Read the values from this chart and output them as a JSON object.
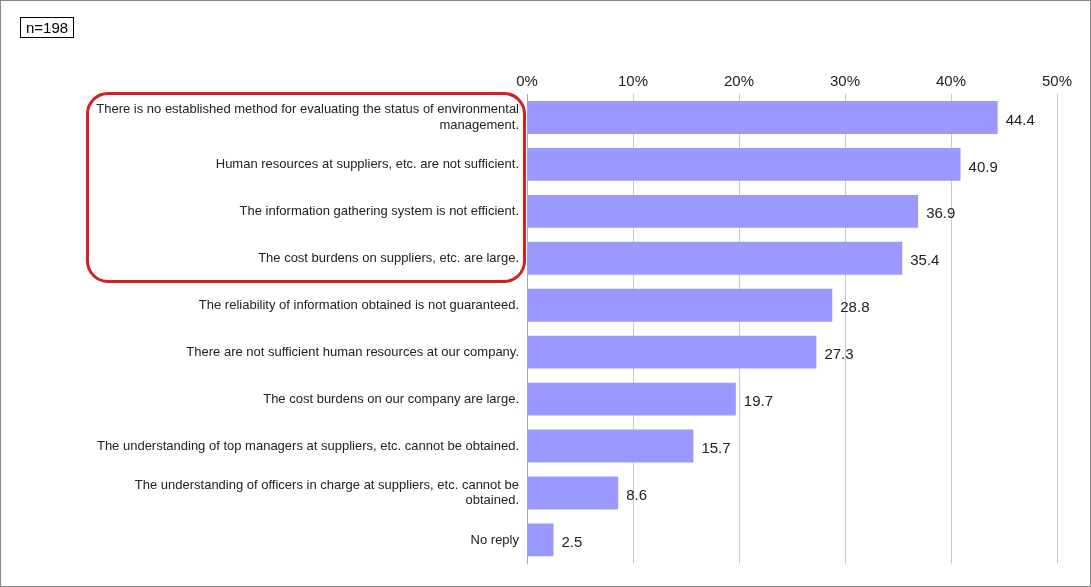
{
  "chart_data": {
    "type": "bar",
    "orientation": "horizontal",
    "categories": [
      "There is no established method for evaluating the status of environmental management.",
      "Human resources at suppliers, etc. are not sufficient.",
      "The information gathering system is not efficient.",
      "The cost burdens on suppliers, etc. are large.",
      "The reliability of information obtained is not guaranteed.",
      "There are not sufficient human resources at our company.",
      "The cost burdens on our company are large.",
      "The understanding of top managers at suppliers, etc. cannot be obtained.",
      "The understanding of officers in charge at suppliers, etc. cannot be obtained.",
      "No reply"
    ],
    "values": [
      44.4,
      40.9,
      36.9,
      35.4,
      28.8,
      27.3,
      19.7,
      15.7,
      8.6,
      2.5
    ],
    "color": "#9999ff",
    "xlim": [
      0,
      50
    ],
    "xticks": [
      {
        "value": 0,
        "label": "0%"
      },
      {
        "value": 10,
        "label": "10%"
      },
      {
        "value": 20,
        "label": "20%"
      },
      {
        "value": 30,
        "label": "30%"
      },
      {
        "value": 40,
        "label": "40%"
      },
      {
        "value": 50,
        "label": "50%"
      }
    ],
    "grid": "x",
    "data_labels": true,
    "legend": false,
    "annotations": [
      "n=198"
    ]
  }
}
